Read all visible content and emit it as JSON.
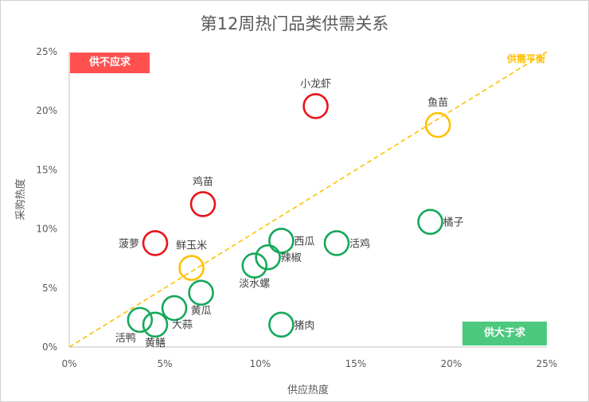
{
  "chart_data": {
    "type": "scatter",
    "title": "第12周热门品类供需关系",
    "xlabel": "供应热度",
    "ylabel": "采购热度",
    "xlim": [
      0,
      25
    ],
    "ylim": [
      0,
      25
    ],
    "x_ticks": [
      "0%",
      "5%",
      "10%",
      "15%",
      "20%",
      "25%"
    ],
    "y_ticks": [
      "0%",
      "5%",
      "10%",
      "15%",
      "20%",
      "25%"
    ],
    "grid": false,
    "reference_line": {
      "label": "供需平衡",
      "color": "#FFC000",
      "style": "dashed",
      "from": [
        0,
        0
      ],
      "to": [
        25,
        25
      ]
    },
    "annotations": {
      "top_left": {
        "text": "供不应求",
        "color": "#FF5050"
      },
      "bottom_right": {
        "text": "供大于求",
        "color": "#4CC97F"
      }
    },
    "status_colors": {
      "shortage": "#E8141B",
      "balanced": "#FFC000",
      "surplus": "#14A85A"
    },
    "points": [
      {
        "name": "小龙虾",
        "x": 12.9,
        "y": 20.4,
        "status": "shortage",
        "label_pos": "above"
      },
      {
        "name": "鸡苗",
        "x": 7.0,
        "y": 12.1,
        "status": "shortage",
        "label_pos": "above"
      },
      {
        "name": "菠萝",
        "x": 4.5,
        "y": 8.8,
        "status": "shortage",
        "label_pos": "left"
      },
      {
        "name": "鱼苗",
        "x": 19.3,
        "y": 18.8,
        "status": "balanced",
        "label_pos": "above"
      },
      {
        "name": "鲜玉米",
        "x": 6.4,
        "y": 6.7,
        "status": "balanced",
        "label_pos": "above"
      },
      {
        "name": "橘子",
        "x": 18.9,
        "y": 10.6,
        "status": "surplus",
        "label_pos": "right"
      },
      {
        "name": "西瓜",
        "x": 11.1,
        "y": 9.0,
        "status": "surplus",
        "label_pos": "right"
      },
      {
        "name": "活鸡",
        "x": 14.0,
        "y": 8.8,
        "status": "surplus",
        "label_pos": "right"
      },
      {
        "name": "辣椒",
        "x": 10.4,
        "y": 7.6,
        "status": "surplus",
        "label_pos": "right"
      },
      {
        "name": "淡水螺",
        "x": 9.7,
        "y": 6.9,
        "status": "surplus",
        "label_pos": "below"
      },
      {
        "name": "黄瓜",
        "x": 6.9,
        "y": 4.6,
        "status": "surplus",
        "label_pos": "below"
      },
      {
        "name": "大蒜",
        "x": 5.5,
        "y": 3.3,
        "status": "surplus",
        "label_pos": "below-right"
      },
      {
        "name": "活鸭",
        "x": 3.7,
        "y": 2.3,
        "status": "surplus",
        "label_pos": "below-left"
      },
      {
        "name": "黄鳝",
        "x": 4.5,
        "y": 1.9,
        "status": "surplus",
        "label_pos": "below"
      },
      {
        "name": "猪肉",
        "x": 11.1,
        "y": 1.9,
        "status": "surplus",
        "label_pos": "right"
      }
    ]
  }
}
